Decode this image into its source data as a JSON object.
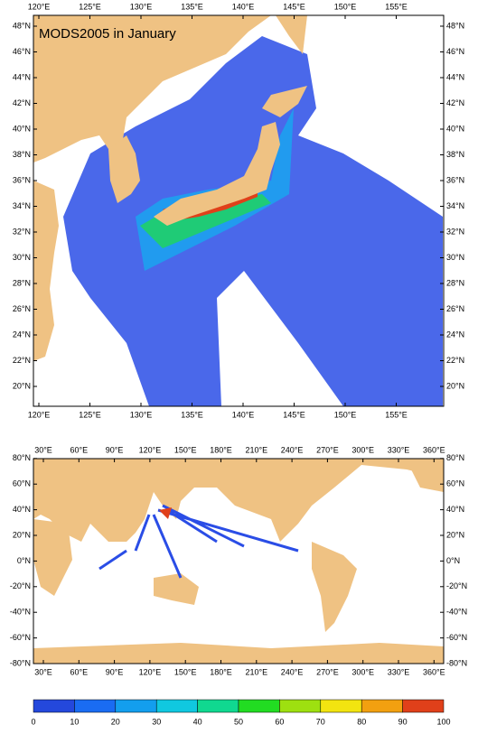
{
  "title": "MODS2005 in January",
  "regional_map": {
    "lon_labels": [
      "120°E",
      "125°E",
      "130°E",
      "135°E",
      "140°E",
      "145°E",
      "150°E",
      "155°E"
    ],
    "lat_labels": [
      "20°N",
      "22°N",
      "24°N",
      "26°N",
      "28°N",
      "30°N",
      "32°N",
      "34°N",
      "36°N",
      "38°N",
      "40°N",
      "42°N",
      "44°N",
      "46°N",
      "48°N"
    ]
  },
  "global_map": {
    "lon_labels": [
      "30°E",
      "60°E",
      "90°E",
      "120°E",
      "150°E",
      "180°E",
      "210°E",
      "240°E",
      "270°E",
      "300°E",
      "330°E",
      "360°E"
    ],
    "lat_labels": [
      "-80°N",
      "-60°N",
      "-40°N",
      "-20°N",
      "0°N",
      "20°N",
      "40°N",
      "60°N",
      "80°N"
    ]
  },
  "colorbar": {
    "labels": [
      "0",
      "10",
      "20",
      "30",
      "40",
      "50",
      "60",
      "70",
      "80",
      "90",
      "100"
    ],
    "colors": [
      "#2448dc",
      "#1a6cf2",
      "#139eee",
      "#10c8e0",
      "#10d890",
      "#22dc22",
      "#9ee010",
      "#f2e410",
      "#f2a010",
      "#e0401a"
    ]
  }
}
